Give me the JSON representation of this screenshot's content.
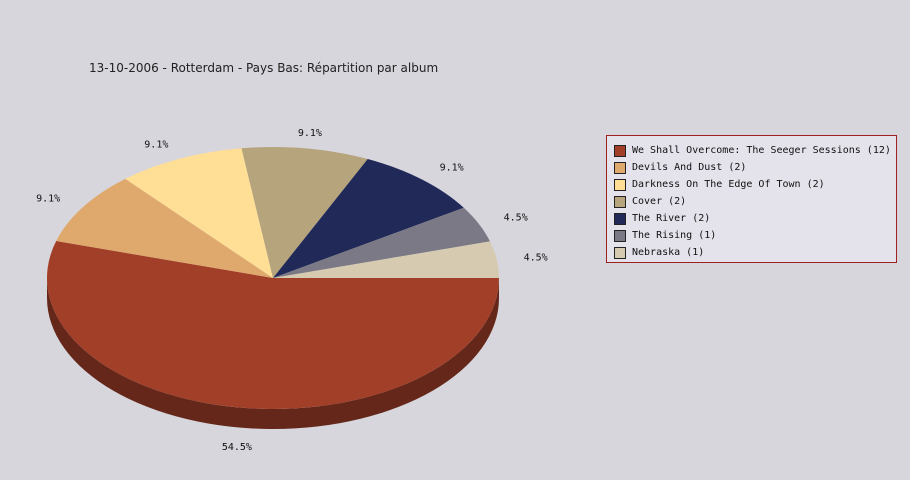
{
  "chart_data": {
    "type": "pie",
    "title": "13-10-2006 - Rotterdam - Pays Bas:  Répartition par album",
    "slices": [
      {
        "label": "We Shall Overcome: The Seeger Sessions",
        "count": 12,
        "value": 54.5,
        "percent_label": "54.5%",
        "legend": "We Shall Overcome: The Seeger Sessions (12)",
        "color": "#a13f28"
      },
      {
        "label": "Devils And Dust",
        "count": 2,
        "value": 9.1,
        "percent_label": "9.1%",
        "legend": "Devils And Dust (2)",
        "color": "#dfa96d"
      },
      {
        "label": "Darkness On The Edge Of Town",
        "count": 2,
        "value": 9.1,
        "percent_label": "9.1%",
        "legend": "Darkness On The Edge Of Town (2)",
        "color": "#ffdf95"
      },
      {
        "label": "Cover",
        "count": 2,
        "value": 9.1,
        "percent_label": "9.1%",
        "legend": "Cover (2)",
        "color": "#b6a47c"
      },
      {
        "label": "The River",
        "count": 2,
        "value": 9.1,
        "percent_label": "9.1%",
        "legend": "The River (2)",
        "color": "#212958"
      },
      {
        "label": "The Rising",
        "count": 1,
        "value": 4.5,
        "percent_label": "4.5%",
        "legend": "The Rising (1)",
        "color": "#7a7985"
      },
      {
        "label": "Nebraska",
        "count": 1,
        "value": 4.5,
        "percent_label": "4.5%",
        "legend": "Nebraska (1)",
        "color": "#d6cab0"
      }
    ],
    "legend_position": "right",
    "style": "3d"
  }
}
